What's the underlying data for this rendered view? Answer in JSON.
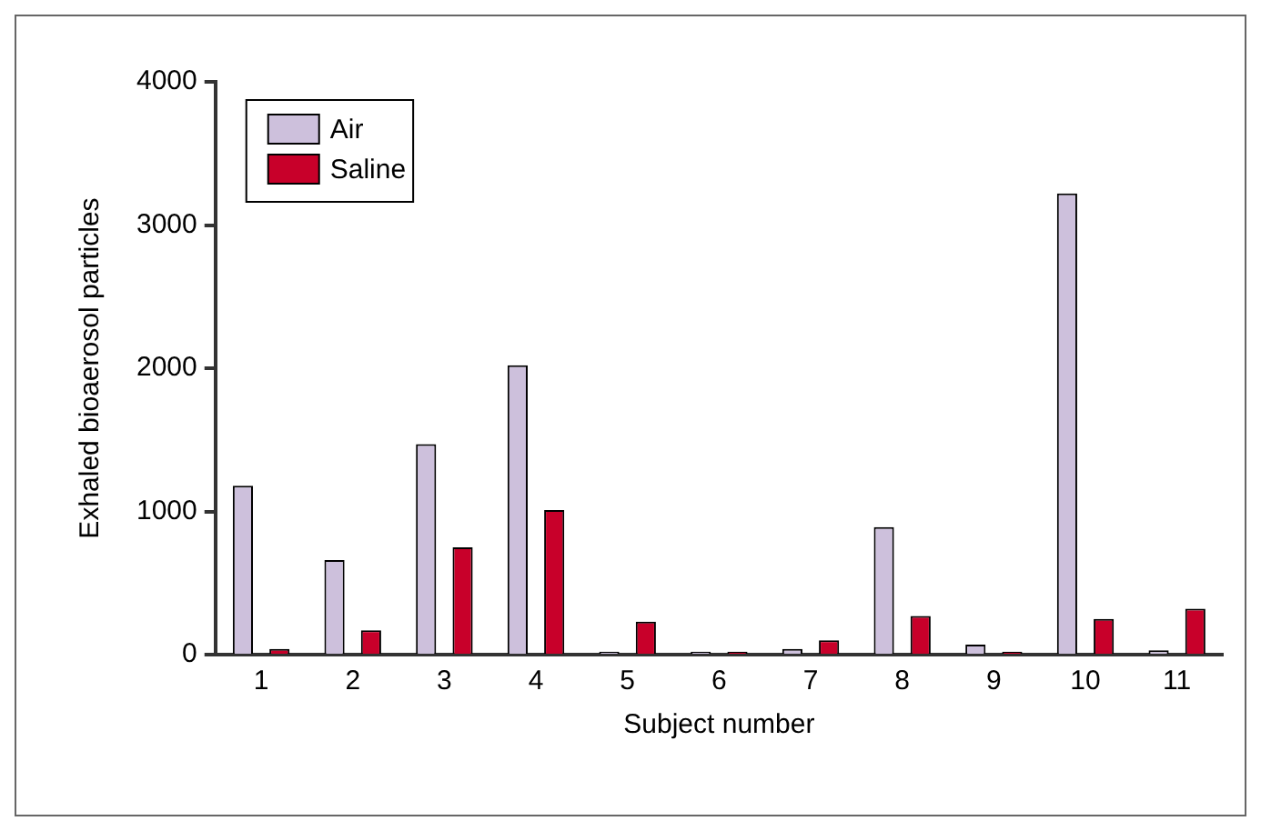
{
  "chart_data": {
    "type": "bar",
    "xlabel": "Subject number",
    "ylabel": "Exhaled bioaerosol particles",
    "categories": [
      "1",
      "2",
      "3",
      "4",
      "5",
      "6",
      "7",
      "8",
      "9",
      "10",
      "11"
    ],
    "series": [
      {
        "name": "Air",
        "color": "#cdc0dc",
        "values": [
          1180,
          660,
          1470,
          2020,
          20,
          20,
          40,
          890,
          70,
          3220,
          30
        ]
      },
      {
        "name": "Saline",
        "color": "#c8002a",
        "values": [
          40,
          170,
          750,
          1010,
          230,
          20,
          100,
          270,
          20,
          250,
          320
        ]
      }
    ],
    "ylim": [
      0,
      4000
    ],
    "yticks": [
      0,
      1000,
      2000,
      3000,
      4000
    ],
    "grid": false,
    "legend": "top left"
  }
}
